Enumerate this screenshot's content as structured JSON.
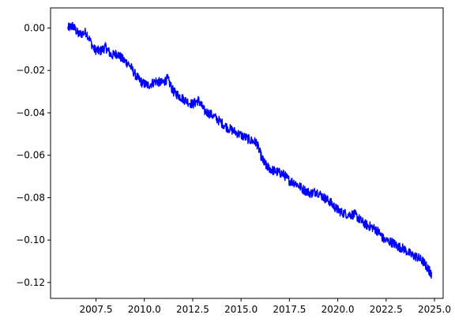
{
  "chart_data": {
    "type": "line",
    "title": "",
    "xlabel": "",
    "ylabel": "",
    "xlim": [
      2005.15,
      2025.45
    ],
    "ylim": [
      -0.1275,
      0.0095
    ],
    "x_ticks": [
      2007.5,
      2010.0,
      2012.5,
      2015.0,
      2017.5,
      2020.0,
      2022.5,
      2025.0
    ],
    "x_tick_labels": [
      "2007.5",
      "2010.0",
      "2012.5",
      "2015.0",
      "2017.5",
      "2020.0",
      "2022.5",
      "2025.0"
    ],
    "y_ticks": [
      0.0,
      -0.02,
      -0.04,
      -0.06,
      -0.08,
      -0.1,
      -0.12
    ],
    "y_tick_labels": [
      "0.00",
      "−0.02",
      "−0.04",
      "−0.06",
      "−0.08",
      "−0.10",
      "−0.12"
    ],
    "grid": false,
    "legend": "none",
    "series": [
      {
        "color": "#0000ff",
        "x": [
          2006.05,
          2006.3,
          2006.6,
          2007.0,
          2007.4,
          2007.7,
          2008.0,
          2008.3,
          2008.6,
          2008.9,
          2009.2,
          2009.6,
          2009.9,
          2010.2,
          2010.6,
          2010.9,
          2011.2,
          2011.5,
          2011.8,
          2012.1,
          2012.5,
          2012.8,
          2013.1,
          2013.5,
          2013.9,
          2014.3,
          2014.7,
          2015.1,
          2015.5,
          2015.8,
          2016.1,
          2016.3,
          2016.6,
          2016.9,
          2017.2,
          2017.5,
          2017.8,
          2018.2,
          2018.6,
          2018.9,
          2019.3,
          2019.6,
          2019.9,
          2020.2,
          2020.6,
          2020.9,
          2021.2,
          2021.5,
          2021.8,
          2022.1,
          2022.4,
          2022.8,
          2023.1,
          2023.4,
          2023.8,
          2024.1,
          2024.4,
          2024.7,
          2024.85
        ],
        "y": [
          0.0,
          0.001,
          -0.003,
          -0.002,
          -0.01,
          -0.011,
          -0.009,
          -0.013,
          -0.012,
          -0.015,
          -0.017,
          -0.023,
          -0.026,
          -0.027,
          -0.025,
          -0.026,
          -0.024,
          -0.03,
          -0.032,
          -0.034,
          -0.036,
          -0.034,
          -0.039,
          -0.041,
          -0.044,
          -0.047,
          -0.049,
          -0.051,
          -0.053,
          -0.054,
          -0.062,
          -0.065,
          -0.067,
          -0.068,
          -0.069,
          -0.072,
          -0.073,
          -0.076,
          -0.078,
          -0.077,
          -0.08,
          -0.082,
          -0.085,
          -0.087,
          -0.088,
          -0.088,
          -0.091,
          -0.093,
          -0.094,
          -0.096,
          -0.1,
          -0.101,
          -0.103,
          -0.104,
          -0.107,
          -0.108,
          -0.11,
          -0.114,
          -0.116
        ]
      }
    ]
  }
}
